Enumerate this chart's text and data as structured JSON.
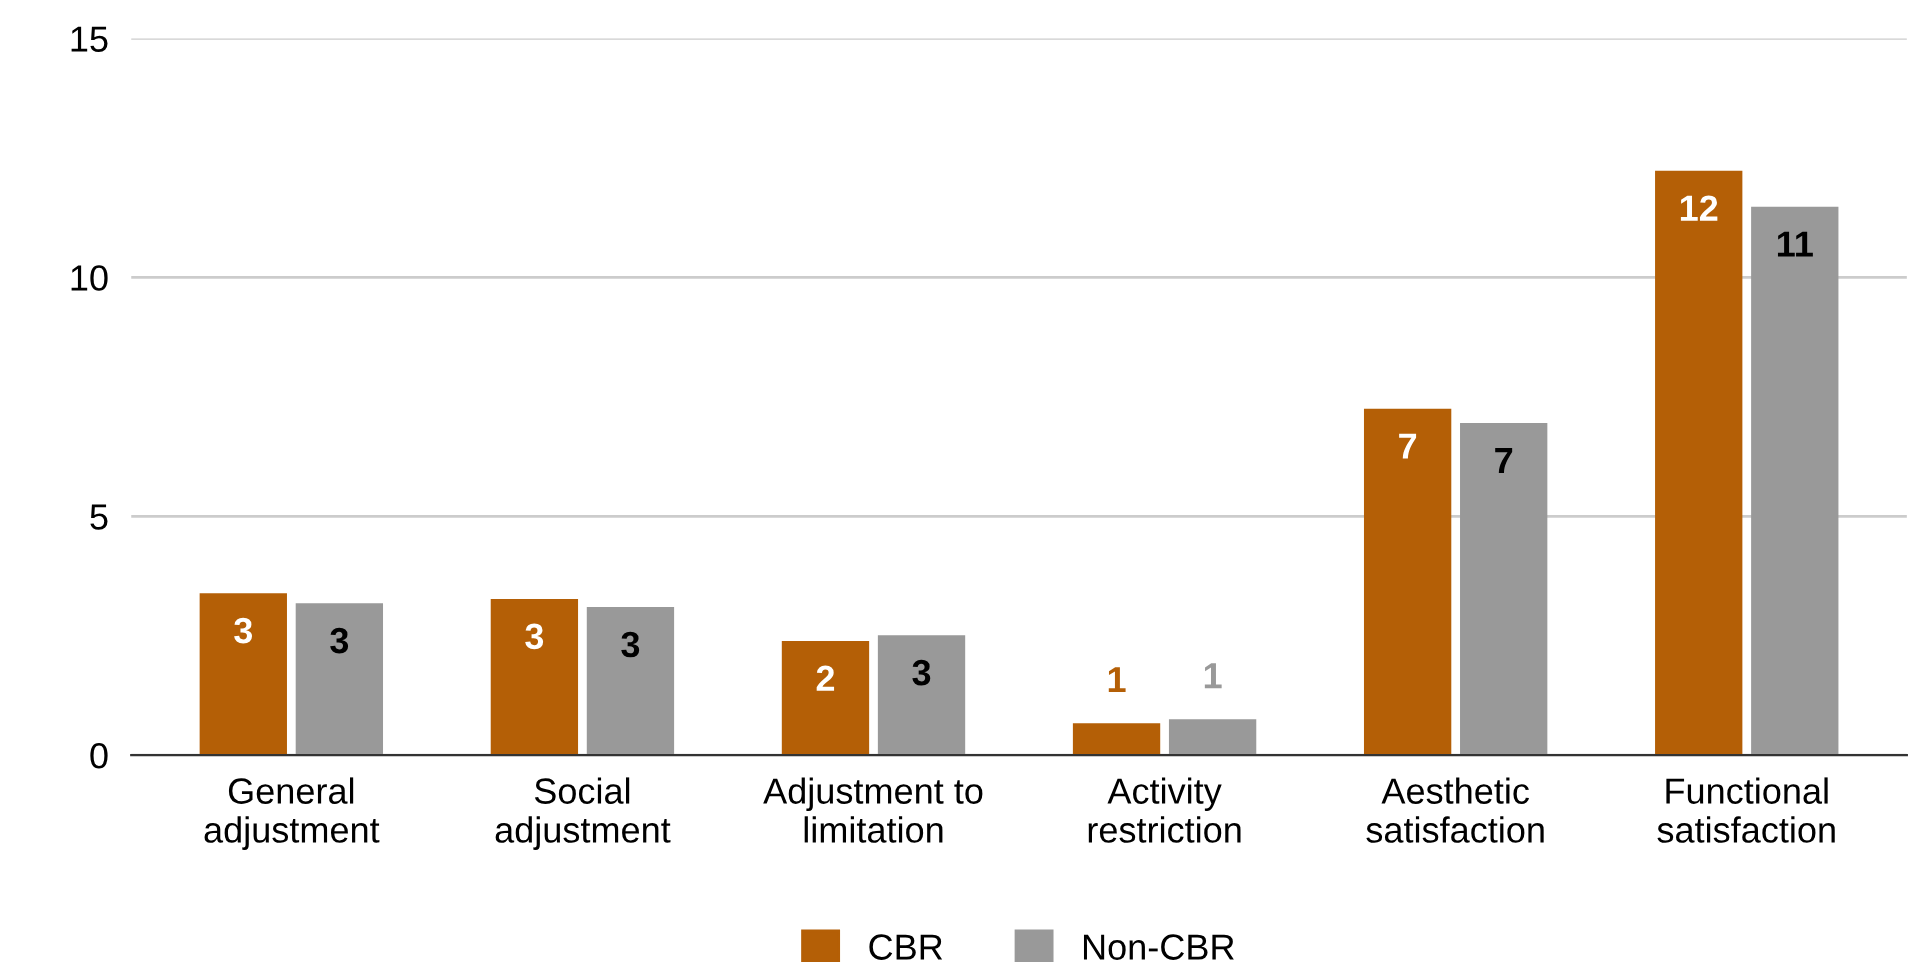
{
  "chart_data": {
    "type": "bar",
    "categories": [
      "General\nadjustment",
      "Social\nadjustment",
      "Adjustment to\nlimitation",
      "Activity\nrestriction",
      "Aesthetic\nsatisfaction",
      "Functional\nsatisfaction"
    ],
    "series": [
      {
        "name": "CBR",
        "color": "#b45f06",
        "values": [
          3.39,
          3.27,
          2.39,
          0.67,
          7.25,
          12.23
        ],
        "value_labels": [
          "3",
          "3",
          "2",
          "1",
          "7",
          "12"
        ]
      },
      {
        "name": "Non-CBR",
        "color": "#999999",
        "values": [
          3.18,
          3.1,
          2.51,
          0.75,
          6.95,
          11.48
        ],
        "value_labels": [
          "3",
          "3",
          "3",
          "1",
          "7",
          "11"
        ]
      }
    ],
    "ylim": [
      0,
      15
    ],
    "yticks": [
      0,
      5,
      10,
      15
    ],
    "grid": "y",
    "legend": "bottom"
  }
}
